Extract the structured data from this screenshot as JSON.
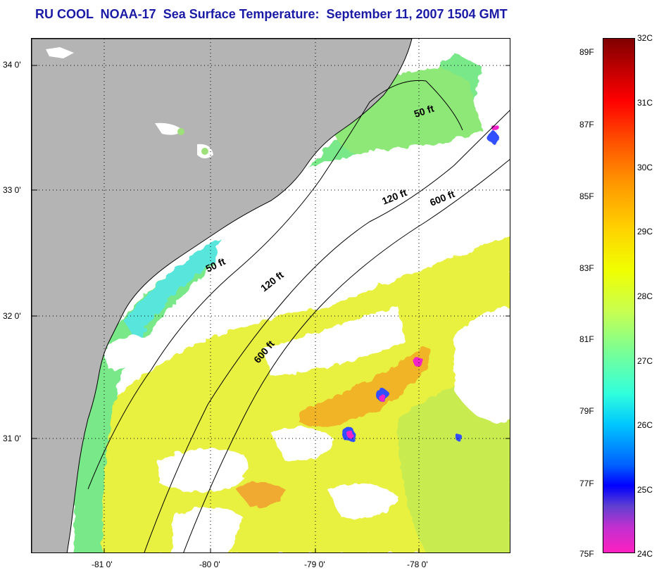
{
  "title": "RU COOL  NOAA-17  Sea Surface Temperature:  September 11, 2007 1504 GMT",
  "map": {
    "lat_ticks": [
      "34 0'",
      "33 0'",
      "32 0'",
      "31 0'"
    ],
    "lon_ticks": [
      "-81 0'",
      "-80 0'",
      "-79 0'",
      "-78 0'"
    ],
    "contour_labels": [
      "50 ft",
      "50 ft",
      "120 ft",
      "120 ft",
      "600 ft",
      "600 ft"
    ],
    "colors": {
      "land": "#b4b4b4",
      "cloud": "#ffffff",
      "warm": "#f0c020",
      "hot": "#f0a020",
      "mid": "#a8e860",
      "green": "#70e890",
      "cool": "#50e8d8",
      "cold": "#3060ff",
      "coldest": "#f020c8"
    }
  },
  "colorbar": {
    "celsius": [
      "32C",
      "31C",
      "30C",
      "29C",
      "28C",
      "27C",
      "26C",
      "25C",
      "24C"
    ],
    "fahrenheit": [
      "89F",
      "87F",
      "85F",
      "83F",
      "81F",
      "79F",
      "77F",
      "75F"
    ],
    "range_c": [
      24,
      32
    ],
    "range_f": [
      75,
      89.6
    ]
  }
}
